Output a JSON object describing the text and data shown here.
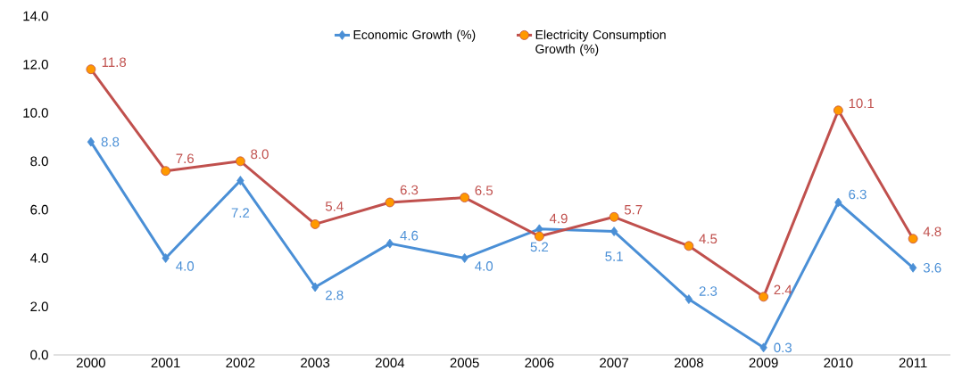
{
  "chart_data": {
    "type": "line",
    "categories": [
      "2000",
      "2001",
      "2002",
      "2003",
      "2004",
      "2005",
      "2006",
      "2007",
      "2008",
      "2009",
      "2010",
      "2011"
    ],
    "series": [
      {
        "name": "Economic Growth (%)",
        "color": "#4a8fd6",
        "marker": "diamond",
        "values": [
          8.8,
          4.0,
          7.2,
          2.8,
          4.6,
          4.0,
          5.2,
          5.1,
          2.3,
          0.3,
          6.3,
          3.6
        ],
        "value_labels": [
          "8.8",
          "4.0",
          "7.2",
          "2.8",
          "4.6",
          "4.0",
          "5.2",
          "5.1",
          "2.3",
          "0.3",
          "6.3",
          "3.6"
        ]
      },
      {
        "name": "Electricity Consumption Growth (%)",
        "color": "#c0504d",
        "marker": "circle",
        "values": [
          11.8,
          7.6,
          8.0,
          5.4,
          6.3,
          6.5,
          4.9,
          5.7,
          4.5,
          2.4,
          10.1,
          4.8
        ],
        "value_labels": [
          "11.8",
          "7.6",
          "8.0",
          "5.4",
          "6.3",
          "6.5",
          "4.9",
          "5.7",
          "4.5",
          "2.4",
          "10.1",
          "4.8"
        ]
      }
    ],
    "ylim": [
      0,
      14
    ],
    "yticks": [
      {
        "value": 0,
        "label": "0.0"
      },
      {
        "value": 2,
        "label": "2.0"
      },
      {
        "value": 4,
        "label": "4.0"
      },
      {
        "value": 6,
        "label": "6.0"
      },
      {
        "value": 8,
        "label": "8.0"
      },
      {
        "value": 10,
        "label": "10.0"
      },
      {
        "value": 12,
        "label": "12.0"
      },
      {
        "value": 14,
        "label": "14.0"
      }
    ],
    "grid": false,
    "legend": "top"
  }
}
